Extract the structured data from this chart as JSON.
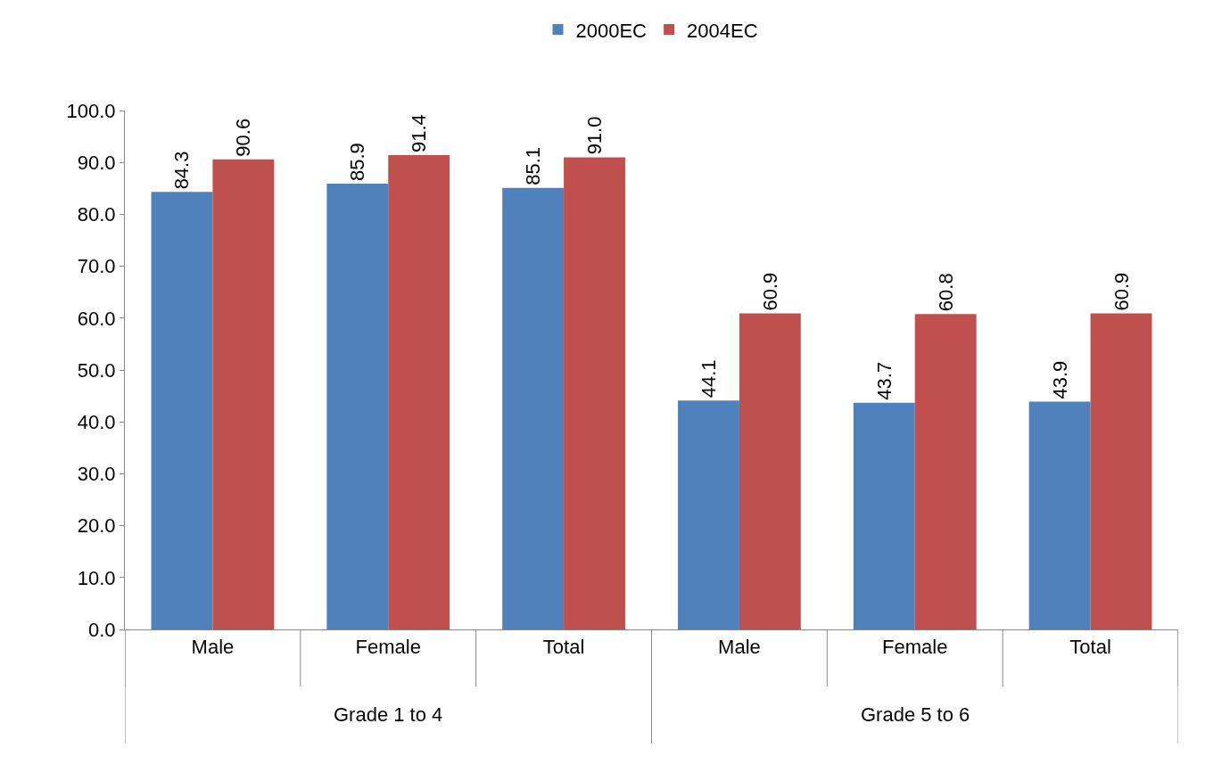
{
  "chart_data": {
    "type": "bar",
    "categories": [
      "Male",
      "Female",
      "Total",
      "Male",
      "Female",
      "Total"
    ],
    "series": [
      {
        "name": "2000EC",
        "color": "#4f81bd",
        "values": [
          84.3,
          85.9,
          85.1,
          44.1,
          43.7,
          43.9
        ],
        "value_labels": [
          "84.3",
          "85.9",
          "85.1",
          "44.1",
          "43.7",
          "43.9"
        ]
      },
      {
        "name": "2004EC",
        "color": "#c0504d",
        "values": [
          90.6,
          91.4,
          91.0,
          60.9,
          60.8,
          60.9
        ],
        "value_labels": [
          "90.6",
          "91.4",
          "91.0",
          "60.9",
          "60.8",
          "60.9"
        ]
      }
    ],
    "ylim": [
      0,
      100
    ],
    "yticks": [
      {
        "value": 0,
        "label": "0.0"
      },
      {
        "value": 10,
        "label": "10.0"
      },
      {
        "value": 20,
        "label": "20.0"
      },
      {
        "value": 30,
        "label": "30.0"
      },
      {
        "value": 40,
        "label": "40.0"
      },
      {
        "value": 50,
        "label": "50.0"
      },
      {
        "value": 60,
        "label": "60.0"
      },
      {
        "value": 70,
        "label": "70.0"
      },
      {
        "value": 80,
        "label": "80.0"
      },
      {
        "value": 90,
        "label": "90.0"
      },
      {
        "value": 100,
        "label": "100.0"
      }
    ],
    "annotations": [
      "Grade 1 to 4",
      "Grade 5 to 6"
    ],
    "legend": "top"
  }
}
